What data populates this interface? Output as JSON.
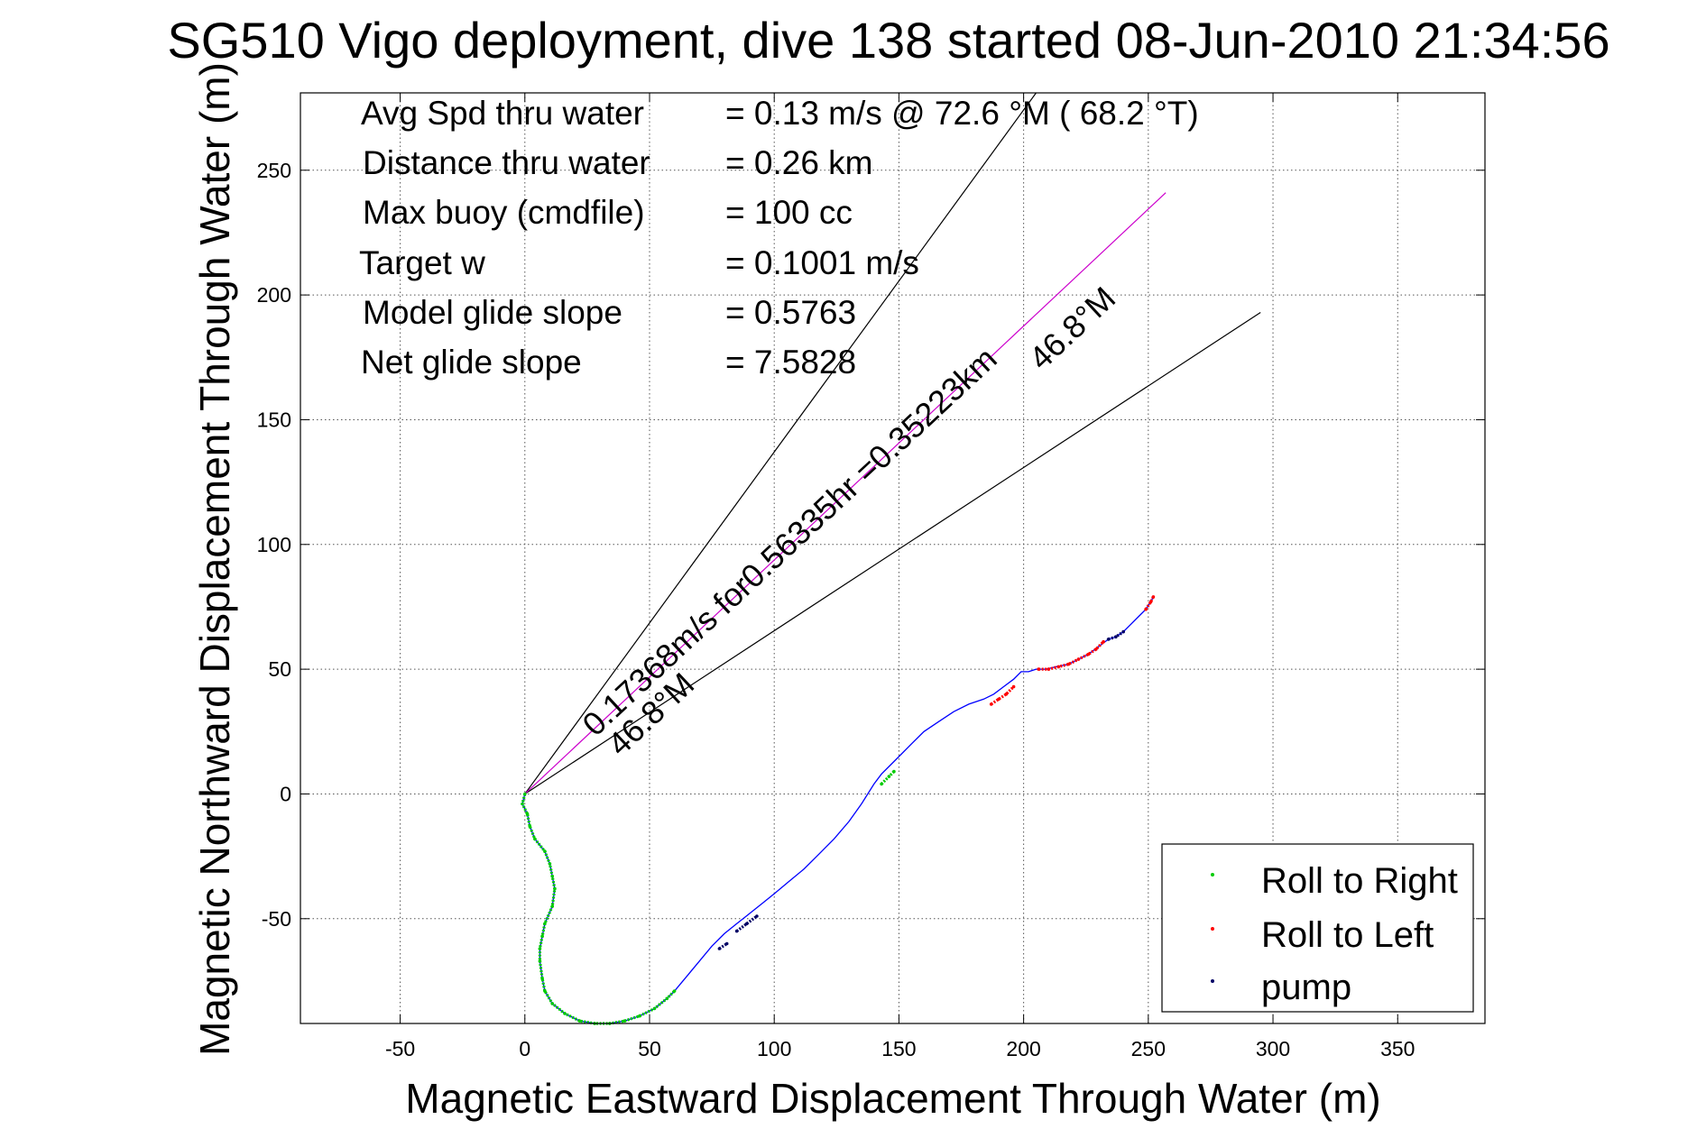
{
  "chart_data": {
    "type": "scatter",
    "title": "SG510 Vigo deployment, dive 138 started 08-Jun-2010 21:34:56",
    "xlabel": "Magnetic Eastward Displacement Through Water (m)",
    "ylabel": "Magnetic Northward Displacement Through Water (m)",
    "xlim": [
      -90,
      385
    ],
    "ylim": [
      -92,
      281
    ],
    "xticks": [
      -50,
      0,
      50,
      100,
      150,
      200,
      250,
      300,
      350
    ],
    "yticks": [
      -50,
      0,
      50,
      100,
      150,
      200,
      250
    ],
    "grid": true,
    "legend_position": "bottom-right",
    "stats": [
      {
        "label": "Avg Spd thru water",
        "value": "=  0.13 m/s @  72.6 °M ( 68.2 °T)"
      },
      {
        "label": "Distance thru water",
        "value": "=  0.26 km"
      },
      {
        "label": "Max buoy (cmdfile)",
        "value": "= 100 cc"
      },
      {
        "label": "Target w",
        "value": "= 0.1001 m/s"
      },
      {
        "label": "Model glide slope",
        "value": "= 0.5763"
      },
      {
        "label": "Net glide slope",
        "value": "= 7.5828"
      }
    ],
    "annotations": {
      "main": "0.17368m/s for0.56335hr =0.35223km",
      "heading_near": "46.8°M",
      "heading_far": "46.8°M"
    },
    "colors": {
      "track": "#0000ff",
      "roll_right": "#00cc00",
      "roll_left": "#ff0000",
      "pump": "#000066",
      "heading_line": "#cc00cc",
      "cone_line": "#000000"
    },
    "heading_line": {
      "x": [
        0,
        257
      ],
      "y": [
        0,
        241
      ]
    },
    "cone_lines": [
      {
        "x": [
          0,
          205
        ],
        "y": [
          0,
          281
        ]
      },
      {
        "x": [
          0,
          295
        ],
        "y": [
          0,
          193
        ]
      }
    ],
    "track": {
      "x": [
        0,
        -1,
        1,
        2,
        4,
        8,
        10,
        11,
        12,
        11,
        8,
        7,
        6,
        6,
        7,
        8,
        11,
        16,
        22,
        28,
        34,
        40,
        46,
        52,
        57,
        60,
        65,
        70,
        75,
        80,
        85,
        90,
        95,
        100,
        106,
        112,
        118,
        124,
        130,
        135,
        140,
        143,
        146,
        150,
        155,
        160,
        166,
        172,
        178,
        184,
        188,
        192,
        196,
        199,
        202,
        205,
        209,
        213,
        218,
        222,
        226,
        230,
        234,
        237,
        240,
        243,
        246,
        249,
        251,
        252
      ],
      "y": [
        0,
        -4,
        -8,
        -13,
        -18,
        -23,
        -28,
        -33,
        -38,
        -45,
        -52,
        -57,
        -62,
        -67,
        -74,
        -79,
        -84,
        -88,
        -91,
        -92,
        -92,
        -91,
        -89,
        -86,
        -82,
        -79,
        -73,
        -67,
        -61,
        -56,
        -52,
        -48,
        -44,
        -40,
        -35,
        -30,
        -24,
        -18,
        -11,
        -4,
        4,
        8,
        11,
        15,
        20,
        25,
        29,
        33,
        36,
        38,
        40,
        43,
        46,
        49,
        49,
        50,
        50,
        51,
        52,
        54,
        56,
        59,
        62,
        63,
        65,
        68,
        71,
        74,
        77,
        79
      ]
    },
    "roll_right_segments": [
      {
        "x": [
          0,
          -1,
          1,
          2,
          4,
          8,
          10,
          11,
          12,
          11,
          8,
          7,
          6,
          6,
          7,
          8,
          11,
          16,
          22,
          28,
          34,
          40,
          46,
          52,
          57,
          60
        ],
        "y": [
          0,
          -4,
          -8,
          -13,
          -18,
          -23,
          -28,
          -33,
          -38,
          -45,
          -52,
          -57,
          -62,
          -67,
          -74,
          -79,
          -84,
          -88,
          -91,
          -92,
          -92,
          -91,
          -89,
          -86,
          -82,
          -79
        ]
      },
      {
        "x": [
          143,
          146,
          148
        ],
        "y": [
          4,
          7,
          9
        ]
      }
    ],
    "roll_left_segments": [
      {
        "x": [
          187,
          190,
          193,
          196
        ],
        "y": [
          36,
          38,
          40,
          43
        ]
      },
      {
        "x": [
          206,
          210,
          214,
          218,
          222,
          226,
          229,
          232
        ],
        "y": [
          50,
          50,
          51,
          52,
          54,
          56,
          58,
          61
        ]
      },
      {
        "x": [
          249,
          251,
          252
        ],
        "y": [
          74,
          77,
          79
        ]
      }
    ],
    "pump_segments": [
      {
        "x": [
          78,
          81
        ],
        "y": [
          -62,
          -60
        ]
      },
      {
        "x": [
          85,
          89,
          93
        ],
        "y": [
          -55,
          -52,
          -49
        ]
      },
      {
        "x": [
          234,
          237,
          240
        ],
        "y": [
          62,
          63,
          65
        ]
      }
    ],
    "legend": [
      {
        "label": "Roll to Right",
        "color": "#00cc00"
      },
      {
        "label": "Roll to Left",
        "color": "#ff0000"
      },
      {
        "label": "pump",
        "color": "#000066"
      }
    ]
  }
}
